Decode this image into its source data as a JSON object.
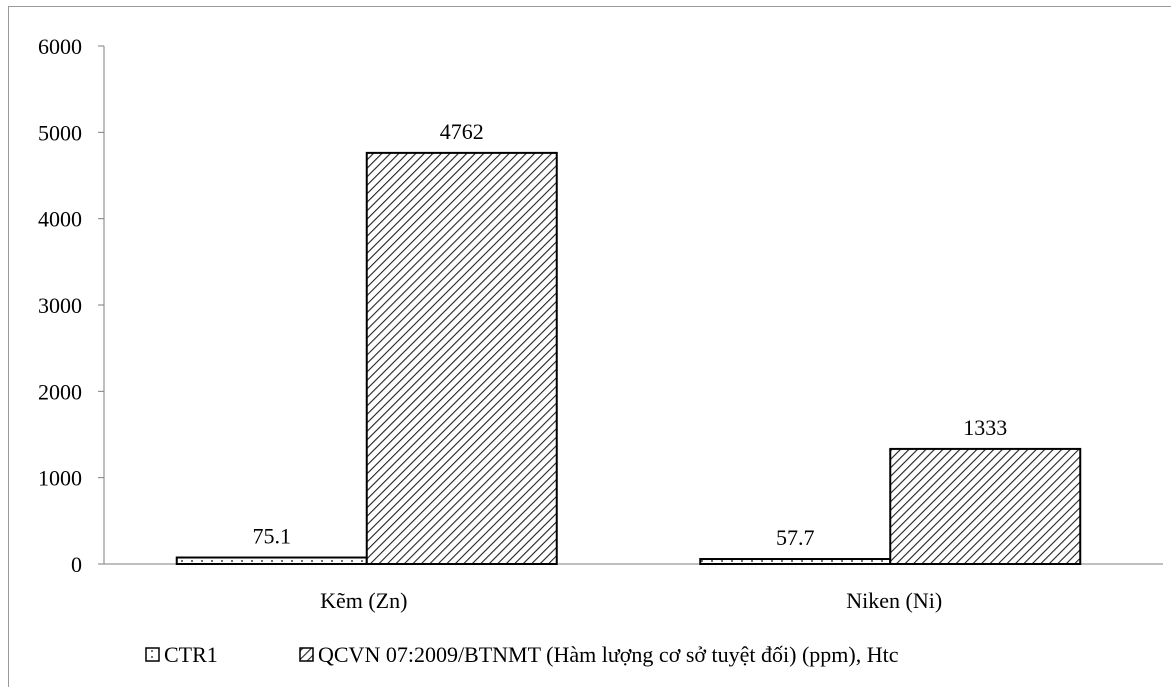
{
  "chart_data": {
    "type": "bar",
    "categories": [
      "Kẽm (Zn)",
      "Niken (Ni)"
    ],
    "series": [
      {
        "name": "CTR1",
        "values": [
          75.1,
          57.7
        ],
        "labels": [
          "75.1",
          "57.7"
        ],
        "pattern": "sparse-dotted"
      },
      {
        "name": "QCVN 07:2009/BTNMT (Hàm lượng cơ sở tuyệt đối) (ppm), Htc",
        "values": [
          4762,
          1333
        ],
        "labels": [
          "4762",
          "1333"
        ],
        "pattern": "diagonal-hatch"
      }
    ],
    "ylim": [
      0,
      6000
    ],
    "yticks": [
      0,
      1000,
      2000,
      3000,
      4000,
      5000,
      6000
    ],
    "ytick_labels": [
      "0",
      "1000",
      "2000",
      "3000",
      "4000",
      "5000",
      "6000"
    ],
    "grid": false,
    "legend_position": "bottom",
    "title": "",
    "xlabel": "",
    "ylabel": ""
  },
  "colors": {
    "bar_stroke": "#000000",
    "axis": "#7f7f7f",
    "background": "#ffffff"
  }
}
